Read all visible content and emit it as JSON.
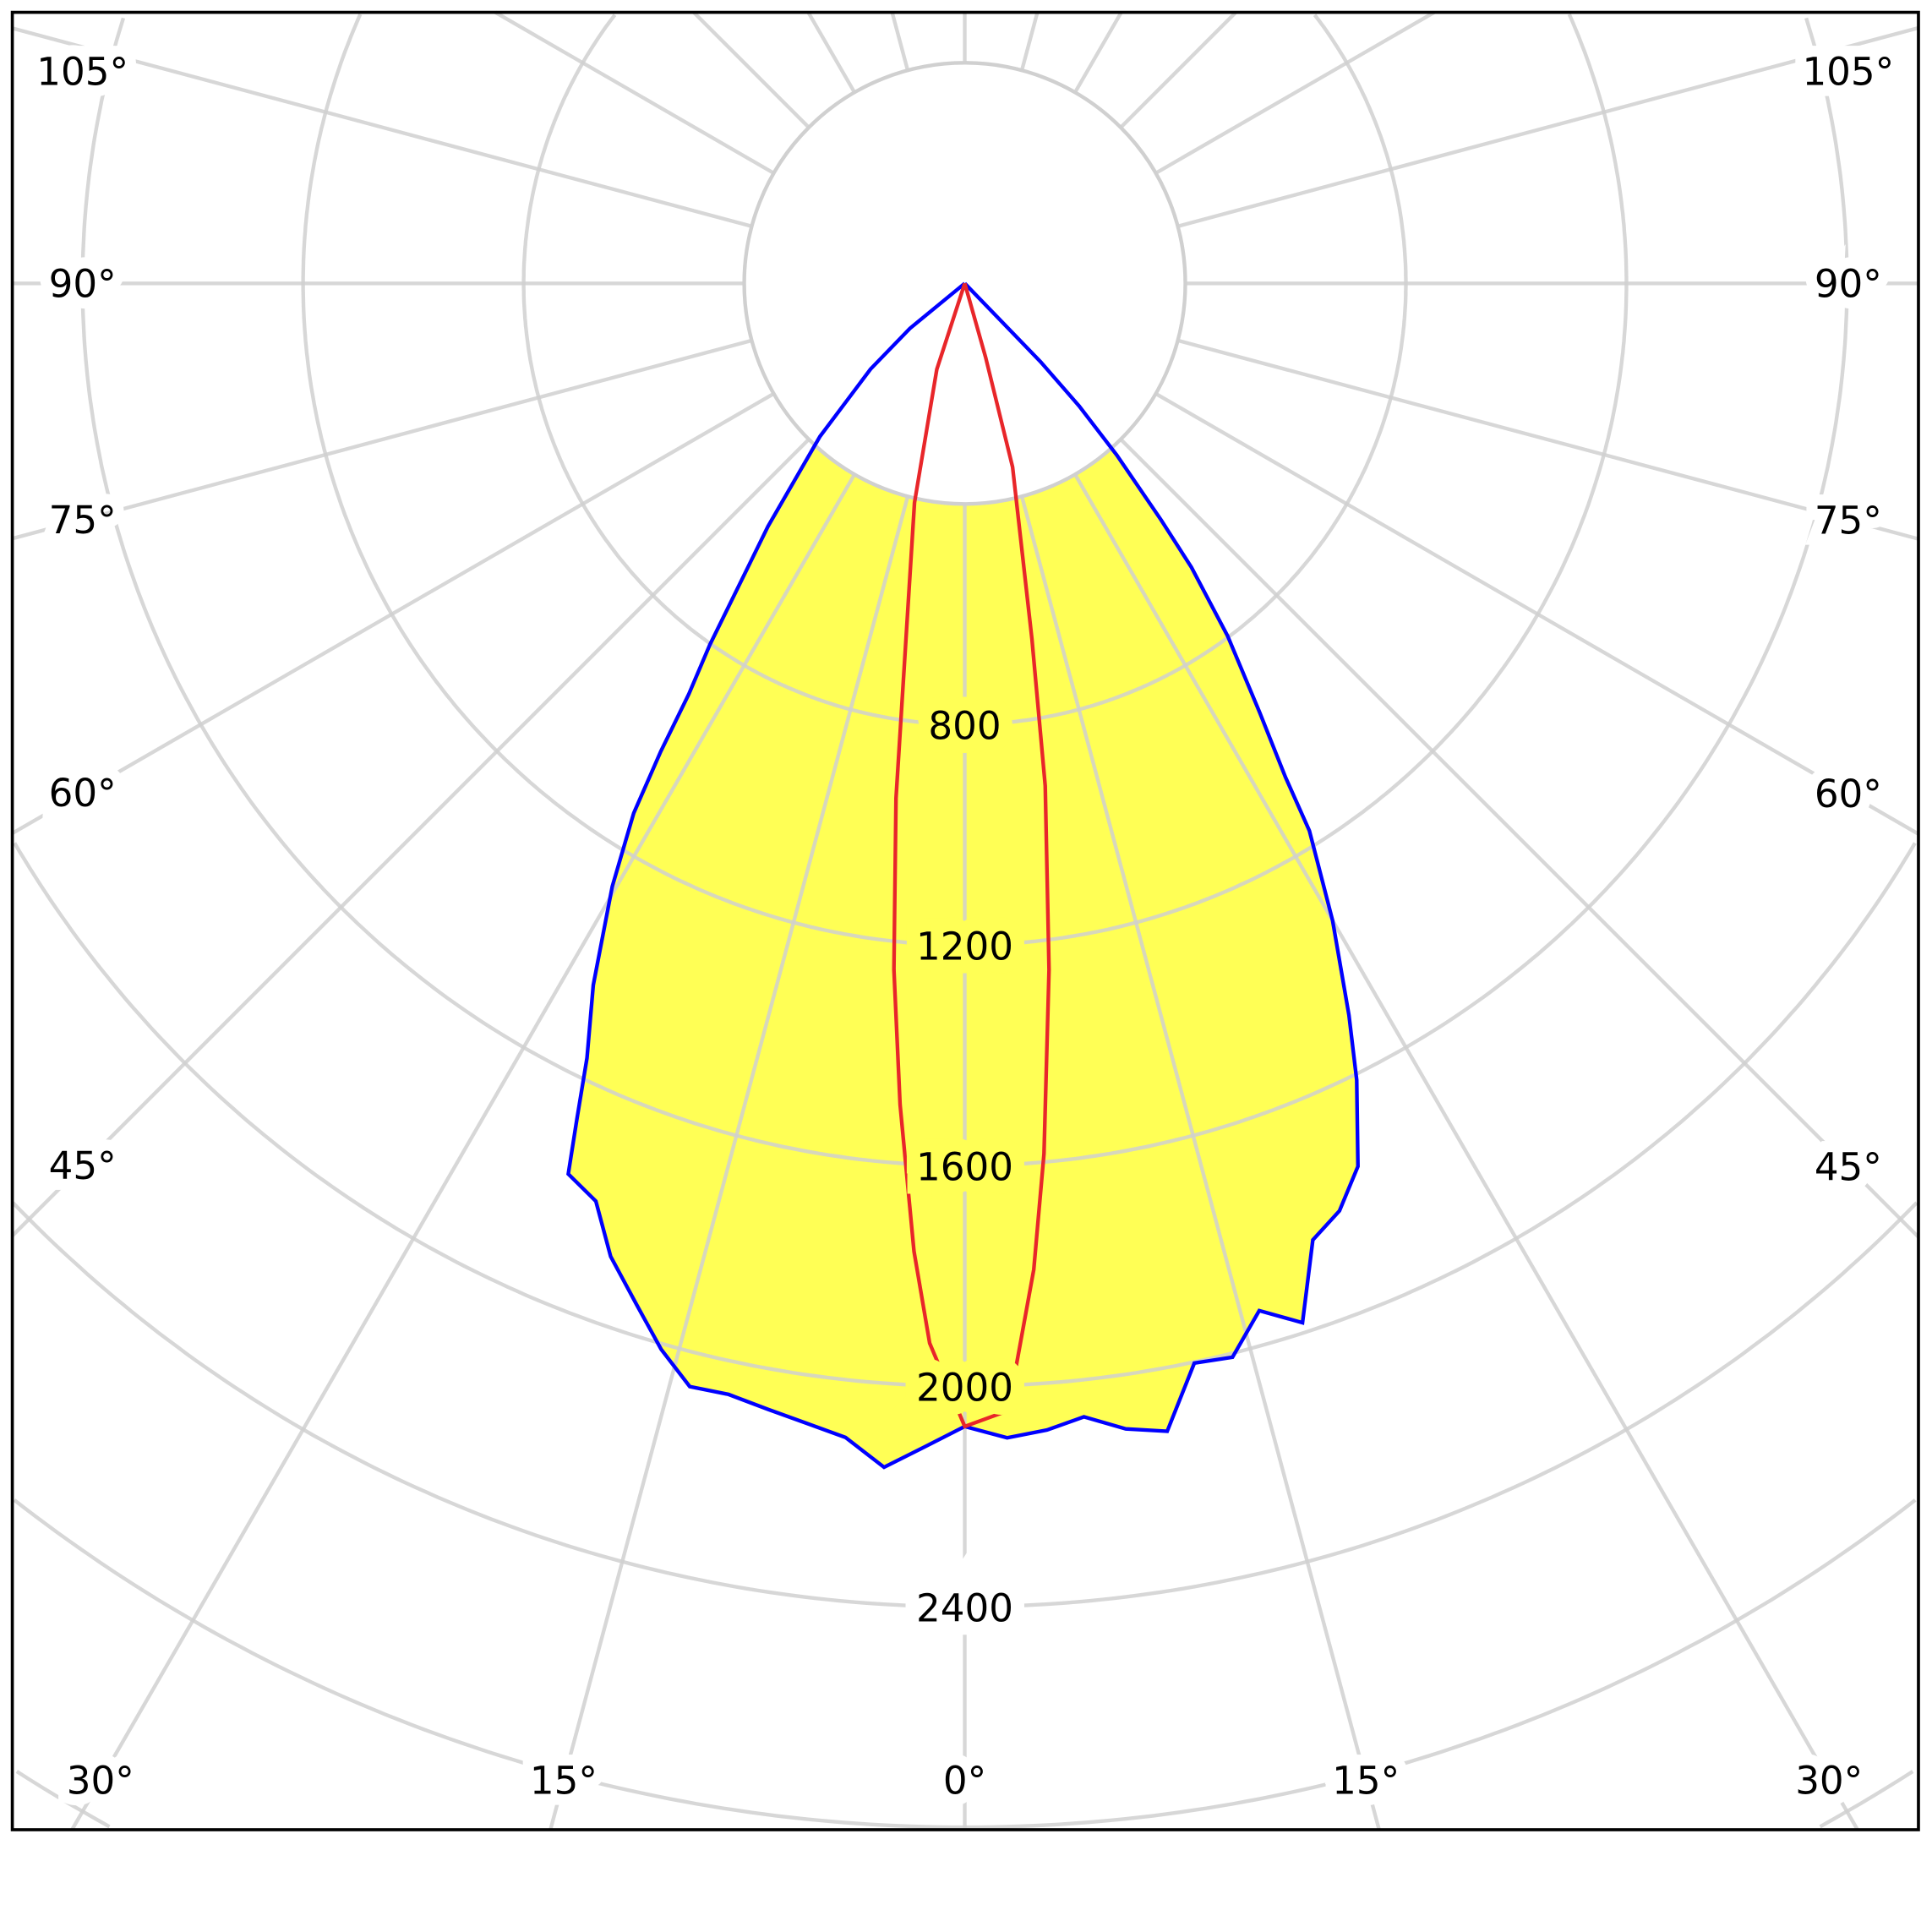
{
  "chart_data": {
    "type": "polar",
    "angle_unit": "degrees",
    "zero_direction": "down",
    "angle_tick_labels": [
      "0°",
      "15°",
      "30°",
      "45°",
      "60°",
      "75°",
      "90°",
      "105°"
    ],
    "angle_ticks": [
      0,
      15,
      30,
      45,
      60,
      75,
      90,
      105
    ],
    "radial_tick_labels": [
      "800",
      "1200",
      "1600",
      "2000",
      "2400"
    ],
    "radial_ticks": [
      800,
      1200,
      1600,
      2000,
      2400
    ],
    "radial_grid_step": 400,
    "angle_grid_step": 15,
    "grid": true,
    "colors": {
      "fill": "#ffff55",
      "series_1": "#0000ff",
      "series_2": "#e8262a",
      "grid": "#d0d0d0",
      "frame": "#000000"
    },
    "series": [
      {
        "color": "#0000ff",
        "filled": true,
        "points": [
          [
            -90,
            0
          ],
          [
            -50.6,
            129
          ],
          [
            -47.7,
            231
          ],
          [
            -43.4,
            382
          ],
          [
            -39,
            567
          ],
          [
            -35.2,
            802
          ],
          [
            -33.9,
            897
          ],
          [
            -33,
            1012
          ],
          [
            -32,
            1133
          ],
          [
            -30.3,
            1267
          ],
          [
            -27.9,
            1440
          ],
          [
            -26,
            1563
          ],
          [
            -24.9,
            1671
          ],
          [
            -24,
            1768
          ],
          [
            -21.9,
            1794
          ],
          [
            -20,
            1878
          ],
          [
            -17.8,
            1946
          ],
          [
            -15.9,
            2010
          ],
          [
            -14,
            2062
          ],
          [
            -12,
            2060
          ],
          [
            -9.9,
            2073
          ],
          [
            -7.9,
            2087
          ],
          [
            -5.9,
            2104
          ],
          [
            -3.9,
            2152
          ],
          [
            -2,
            2112
          ],
          [
            0,
            2073
          ],
          [
            2.1,
            2095
          ],
          [
            4.1,
            2085
          ],
          [
            6,
            2067
          ],
          [
            8,
            2098
          ],
          [
            10,
            2114
          ],
          [
            12,
            2002
          ],
          [
            14,
            2007
          ],
          [
            16,
            1938
          ],
          [
            18,
            1982
          ],
          [
            20,
            1846
          ],
          [
            22,
            1814
          ],
          [
            24,
            1753
          ],
          [
            26.2,
            1610
          ],
          [
            27.7,
            1499
          ],
          [
            30,
            1334
          ],
          [
            32.2,
            1173
          ],
          [
            33,
            1068
          ],
          [
            34.5,
            944
          ],
          [
            36.7,
            798
          ],
          [
            38.6,
            659
          ],
          [
            39.7,
            557
          ],
          [
            41.5,
            416
          ],
          [
            43,
            304
          ],
          [
            44,
            198
          ],
          [
            90,
            0
          ]
        ]
      },
      {
        "color": "#e8262a",
        "filled": false,
        "points": [
          [
            -90,
            0
          ],
          [
            -18,
            164
          ],
          [
            -12.9,
            408
          ],
          [
            -9.4,
            653
          ],
          [
            -7.6,
            942
          ],
          [
            -5.9,
            1251
          ],
          [
            -4.5,
            1494
          ],
          [
            -3,
            1758
          ],
          [
            -1.9,
            1923
          ],
          [
            0,
            2073
          ],
          [
            2.2,
            2046
          ],
          [
            3,
            1925
          ],
          [
            4,
            1793
          ],
          [
            5.2,
            1585
          ],
          [
            7,
            1254
          ],
          [
            9.1,
            923
          ],
          [
            10.7,
            656
          ],
          [
            14.6,
            344
          ],
          [
            15.8,
            139
          ],
          [
            90,
            0
          ]
        ]
      }
    ]
  }
}
